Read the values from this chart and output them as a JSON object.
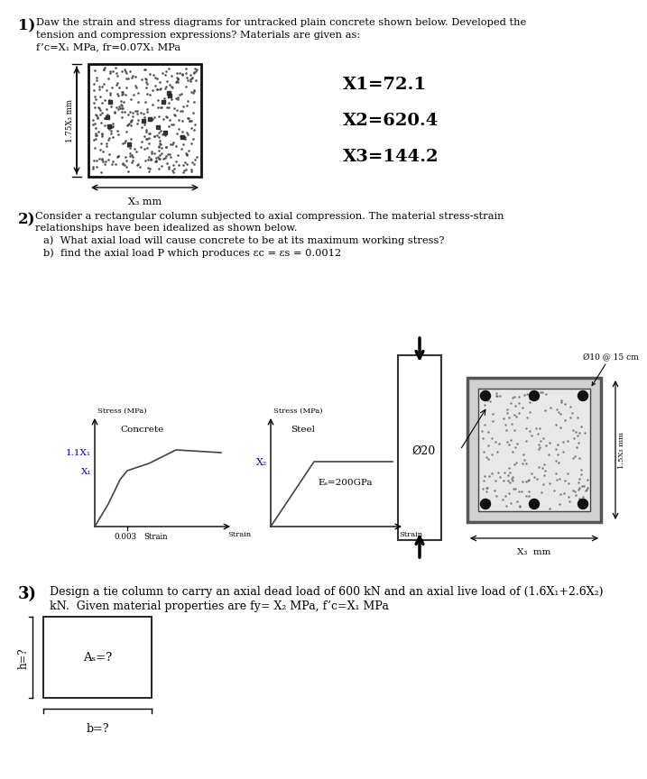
{
  "text1_line1": "Daw the strain and stress diagrams for untracked plain concrete shown below. Developed the",
  "text1_line2": "tension and compression expressions? Materials are given as:",
  "text1_line3": "f’c=X₁ MPa, fr=0.07X₁ MPa",
  "X1_label": "X1=72.1",
  "X2_label": "X2=620.4",
  "X3_label": "X3=144.2",
  "text2_line1": "Consider a rectangular column subjected to axial compression. The material stress-strain",
  "text2_line2": "relationships have been idealized as shown below.",
  "text2_a": "a)  What axial load will cause concrete to be at its maximum working stress?",
  "text2_b": "b)  find the axial load P which produces εc = εs = 0.0012",
  "stress_mpa": "Stress (MPa)",
  "strain_label": "Strain",
  "steel_Es": "Eₛ=200GPa",
  "column_tie": "Ø10 @ 15 cm",
  "column_bar": "Ø20",
  "text3_line1": "Design a tie column to carry an axial dead load of 600 kN and an axial live load of (1.6X₁+2.6X₂)",
  "text3_line2": "kN.  Given material properties are fy= X₂ MPa, f’c=X₁ MPa",
  "rect3_As": "Aₛ=?",
  "rect3_b": "b=?",
  "rect3_h": "h=?",
  "bg_color": "#ffffff",
  "text_color": "#000000",
  "blue_color": "#0000aa",
  "dim_arrow_color": "#000000"
}
